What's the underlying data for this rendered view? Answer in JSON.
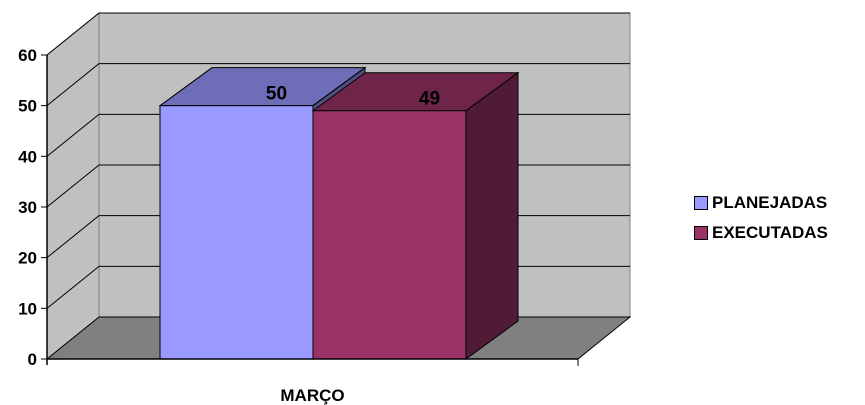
{
  "chart_data": {
    "type": "bar",
    "categories": [
      "MARÇO"
    ],
    "series": [
      {
        "name": "PLANEJADAS",
        "values": [
          50
        ],
        "color": "#9999ff"
      },
      {
        "name": "EXECUTADAS",
        "values": [
          49
        ],
        "color": "#993366"
      }
    ],
    "data_labels": [
      "50",
      "49"
    ],
    "ylim": [
      0,
      60
    ],
    "yticks": [
      "0",
      "10",
      "20",
      "30",
      "40",
      "50",
      "60"
    ],
    "grid": true,
    "legend_position": "right",
    "three_d": true
  }
}
